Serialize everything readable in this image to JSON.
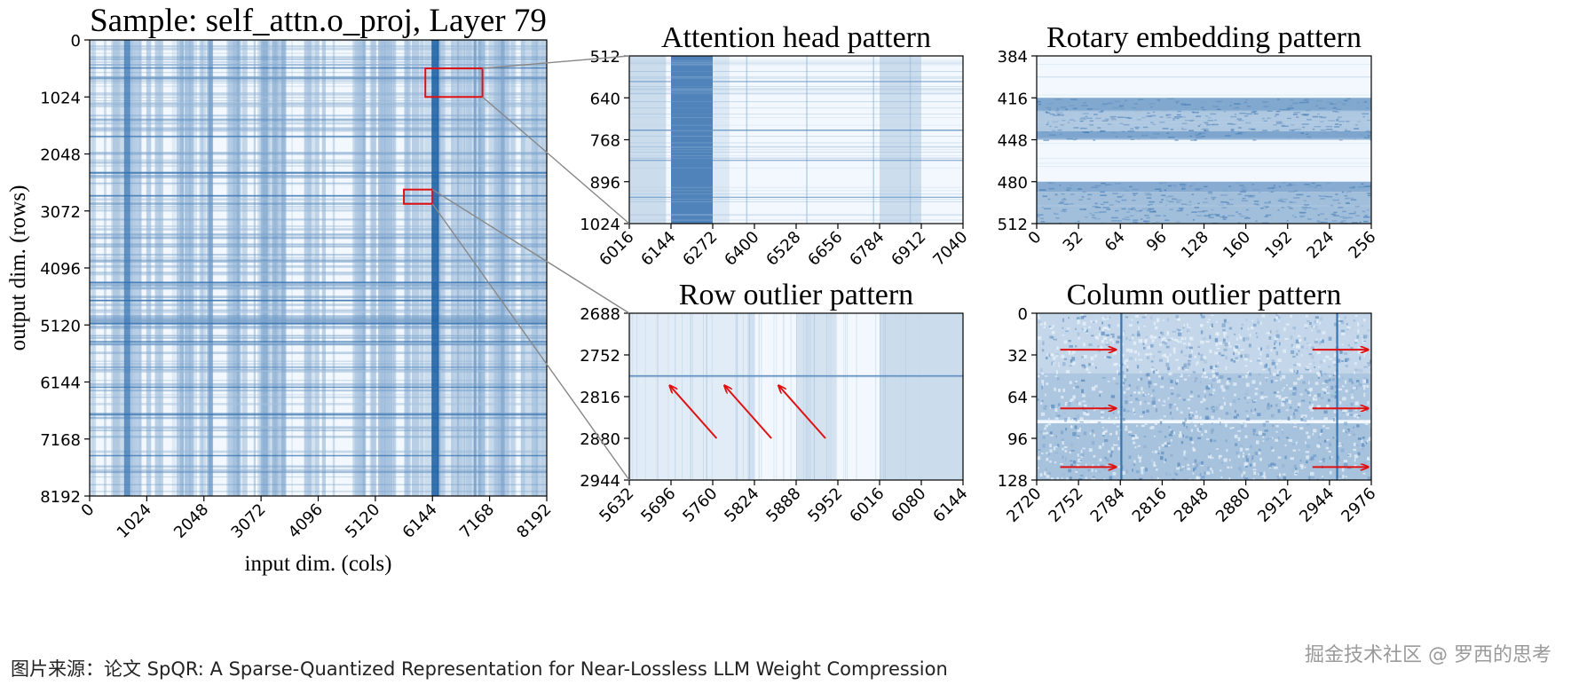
{
  "chart_data": [
    {
      "id": "main",
      "type": "heatmap",
      "title": "Sample: self_attn.o_proj, Layer 79",
      "xlabel": "input dim. (cols)",
      "ylabel": "output dim. (rows)",
      "xlim": [
        0,
        8192
      ],
      "ylim": [
        0,
        8192
      ],
      "xticks": [
        0,
        1024,
        2048,
        3072,
        4096,
        5120,
        6144,
        7168,
        8192
      ],
      "yticks": [
        0,
        1024,
        2048,
        3072,
        4096,
        5120,
        6144,
        7168,
        8192
      ],
      "x_rotate": true,
      "colormap": "Blues",
      "highlight_boxes": [
        {
          "x": [
            6016,
            7040
          ],
          "y": [
            512,
            1024
          ]
        },
        {
          "x": [
            5632,
            6144
          ],
          "y": [
            2688,
            2944
          ]
        }
      ]
    },
    {
      "id": "attn",
      "type": "heatmap",
      "title": "Attention head pattern",
      "xlim": [
        6016,
        7040
      ],
      "ylim": [
        512,
        1024
      ],
      "xticks": [
        6016,
        6144,
        6272,
        6400,
        6528,
        6656,
        6784,
        6912,
        7040
      ],
      "yticks": [
        512,
        640,
        768,
        896,
        1024
      ],
      "x_rotate": true,
      "colormap": "Blues"
    },
    {
      "id": "rotary",
      "type": "heatmap",
      "title": "Rotary embedding pattern",
      "xlim": [
        0,
        256
      ],
      "ylim": [
        384,
        512
      ],
      "xticks": [
        0,
        32,
        64,
        96,
        128,
        160,
        192,
        224,
        256
      ],
      "yticks": [
        384,
        416,
        448,
        480,
        512
      ],
      "x_rotate": true,
      "colormap": "Blues"
    },
    {
      "id": "row",
      "type": "heatmap",
      "title": "Row outlier pattern",
      "xlim": [
        5632,
        6144
      ],
      "ylim": [
        2688,
        2944
      ],
      "xticks": [
        5632,
        5696,
        5760,
        5824,
        5888,
        5952,
        6016,
        6080,
        6144
      ],
      "yticks": [
        2688,
        2752,
        2816,
        2880,
        2944
      ],
      "x_rotate": true,
      "colormap": "Blues",
      "arrows": [
        {
          "from": [
            5766,
            2880
          ],
          "to": [
            5695,
            2800
          ]
        },
        {
          "from": [
            5850,
            2880
          ],
          "to": [
            5779,
            2800
          ]
        },
        {
          "from": [
            5933,
            2880
          ],
          "to": [
            5862,
            2800
          ]
        }
      ]
    },
    {
      "id": "col",
      "type": "heatmap",
      "title": "Column outlier pattern",
      "xlim": [
        2720,
        2976
      ],
      "ylim": [
        0,
        128
      ],
      "xticks": [
        2720,
        2752,
        2784,
        2816,
        2848,
        2880,
        2912,
        2944,
        2976
      ],
      "yticks": [
        0,
        32,
        64,
        96,
        128
      ],
      "x_rotate": true,
      "colormap": "Blues",
      "arrows": [
        {
          "from": [
            2738,
            28
          ],
          "to": [
            2780,
            28
          ]
        },
        {
          "from": [
            2738,
            73
          ],
          "to": [
            2780,
            73
          ]
        },
        {
          "from": [
            2738,
            118
          ],
          "to": [
            2780,
            118
          ]
        },
        {
          "from": [
            2931,
            28
          ],
          "to": [
            2973,
            28
          ]
        },
        {
          "from": [
            2931,
            73
          ],
          "to": [
            2973,
            73
          ]
        },
        {
          "from": [
            2931,
            118
          ],
          "to": [
            2973,
            118
          ]
        }
      ]
    }
  ],
  "footer": {
    "caption": "图片来源：论文 SpQR: A Sparse-Quantized Representation for Near-Lossless LLM Weight Compression",
    "watermark": "掘金技术社区 @ 罗西的思考"
  },
  "colors": {
    "highlight_box": "#e01010",
    "arrow": "#e01010",
    "connector": "#888888"
  }
}
